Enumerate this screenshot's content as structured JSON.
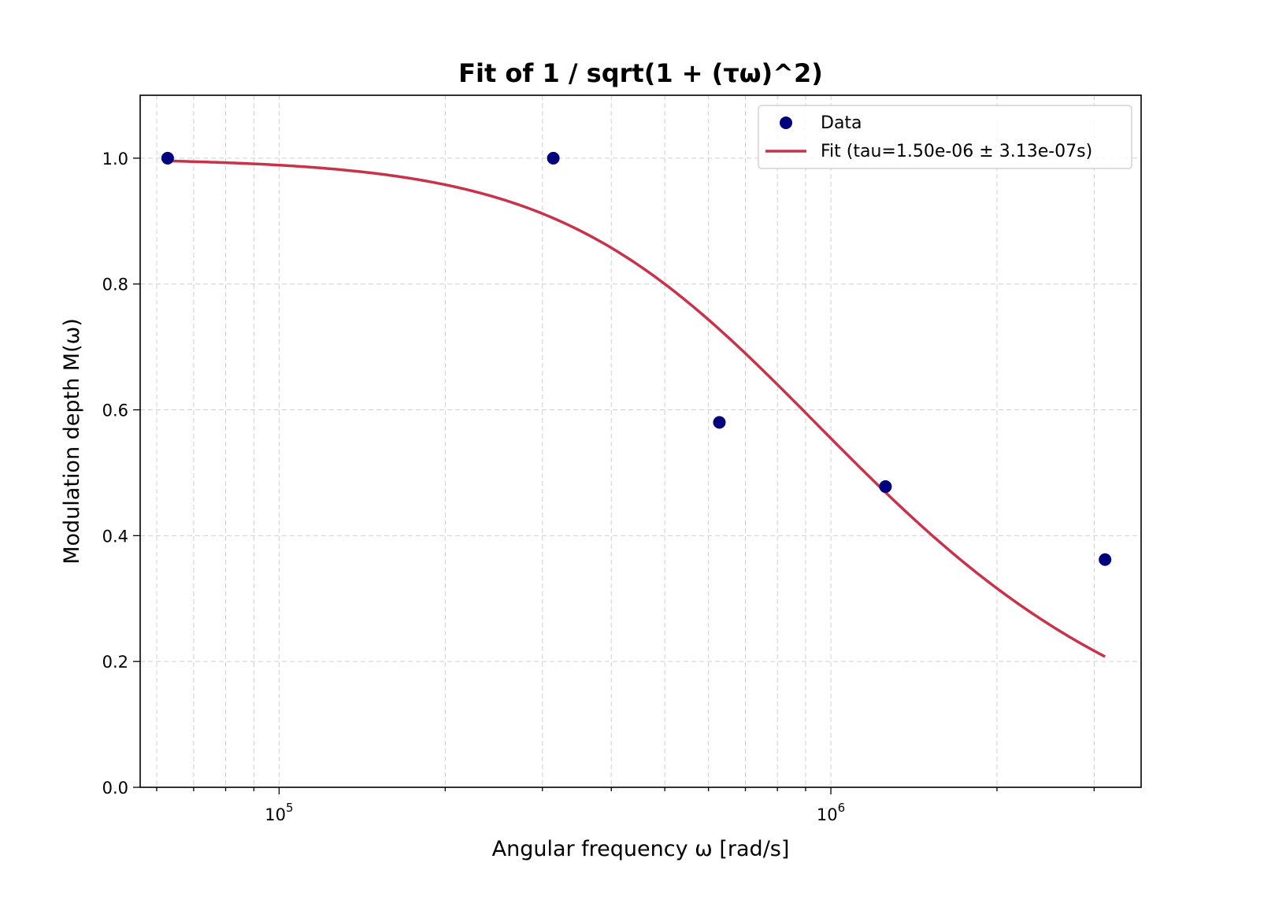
{
  "chart_data": {
    "type": "scatter",
    "title": "Fit of 1 / sqrt(1 + (τω)^2)",
    "xlabel": "Angular frequency ω [rad/s]",
    "ylabel": "Modulation depth M(ω)",
    "xscale": "log",
    "xlim": [
      56000,
      3650000
    ],
    "ylim": [
      0.0,
      1.1
    ],
    "yticks": [
      0.0,
      0.2,
      0.4,
      0.6,
      0.8,
      1.0
    ],
    "ytick_labels": [
      "0.0",
      "0.2",
      "0.4",
      "0.6",
      "0.8",
      "1.0"
    ],
    "xticks_major": [
      {
        "value": 100000,
        "base": "10",
        "exp": "5"
      },
      {
        "value": 1000000,
        "base": "10",
        "exp": "6"
      }
    ],
    "grid": true,
    "legend_position": "top-right",
    "series": [
      {
        "name": "Data",
        "kind": "scatter",
        "color": "#00007f",
        "x": [
          62800,
          314000,
          628000,
          1256000,
          3140000
        ],
        "y": [
          1.0,
          1.0,
          0.58,
          0.478,
          0.362
        ]
      },
      {
        "name": "Fit (tau=1.50e-06 ± 3.13e-07s)",
        "kind": "line",
        "color": "#c8334a",
        "model": "1 / sqrt(1 + (tau*omega)^2)",
        "tau": 1.5e-06,
        "x_range": [
          62800,
          3140000
        ]
      }
    ]
  }
}
